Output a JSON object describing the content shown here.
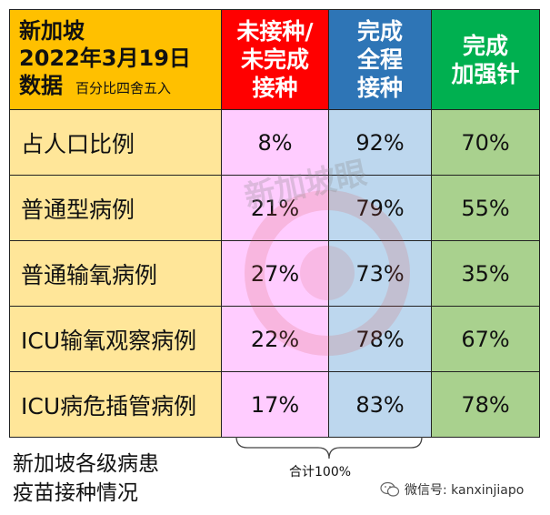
{
  "chart_data": {
    "type": "table",
    "title": [
      "新加坡",
      "2022年3月19日",
      "数据"
    ],
    "note": "百分比四舍五入",
    "columns": [
      {
        "label": [
          "未接种/",
          "未完成",
          "接种"
        ],
        "color": "#ff0000"
      },
      {
        "label": [
          "完成",
          "全程",
          "接种"
        ],
        "color": "#2e75b6"
      },
      {
        "label": [
          "完成",
          "加强针"
        ],
        "color": "#00b050"
      }
    ],
    "rows": [
      {
        "category": "占人口比例",
        "values": [
          "8%",
          "92%",
          "70%"
        ]
      },
      {
        "category": "普通型病例",
        "values": [
          "21%",
          "79%",
          "55%"
        ]
      },
      {
        "category": "普通输氧病例",
        "values": [
          "27%",
          "73%",
          "35%"
        ]
      },
      {
        "category": "ICU输氧观察病例",
        "values": [
          "22%",
          "78%",
          "67%"
        ]
      },
      {
        "category": "ICU病危插管病例",
        "values": [
          "17%",
          "83%",
          "78%"
        ]
      }
    ],
    "brace_label": "合计100%"
  },
  "caption": [
    "新加坡各级病患",
    "疫苗接种情况"
  ],
  "watermark": "新加坡眼",
  "wechat": {
    "icon": "wechat-icon",
    "text": "微信号: kanxinjiapo"
  }
}
